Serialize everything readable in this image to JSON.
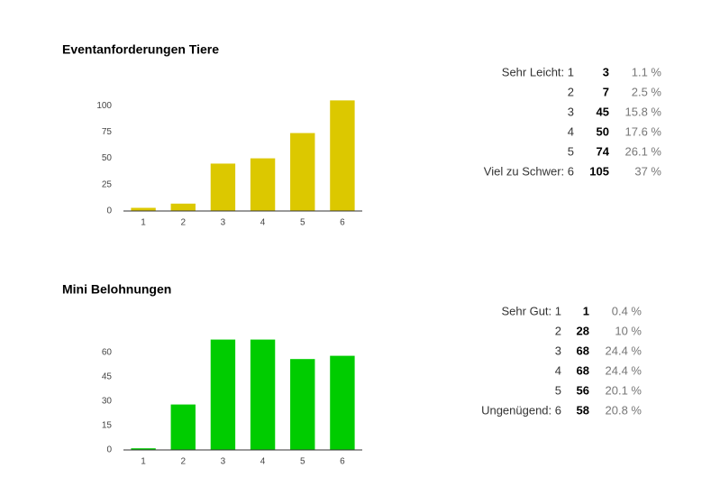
{
  "chart_data": [
    {
      "type": "bar",
      "title": "Eventanforderungen Tiere",
      "categories": [
        "1",
        "2",
        "3",
        "4",
        "5",
        "6"
      ],
      "values": [
        3,
        7,
        45,
        50,
        74,
        105
      ],
      "color": "#dcc800",
      "ylim": [
        0,
        125
      ],
      "yticks": [
        0,
        25,
        50,
        75,
        100
      ],
      "grid": false,
      "row_labels": [
        "Sehr Leicht: 1",
        "2",
        "3",
        "4",
        "5",
        "Viel zu Schwer: 6"
      ],
      "percent_labels": [
        "1.1 %",
        "2.5 %",
        "15.8 %",
        "17.6 %",
        "26.1 %",
        "37 %"
      ]
    },
    {
      "type": "bar",
      "title": "Mini Belohnungen",
      "categories": [
        "1",
        "2",
        "3",
        "4",
        "5",
        "6"
      ],
      "values": [
        1,
        28,
        68,
        68,
        56,
        58
      ],
      "color": "#00cc00",
      "ylim": [
        0,
        75
      ],
      "yticks": [
        0,
        15,
        30,
        45,
        60
      ],
      "grid": false,
      "row_labels": [
        "Sehr Gut: 1",
        "2",
        "3",
        "4",
        "5",
        "Ungenügend: 6"
      ],
      "percent_labels": [
        "0.4 %",
        "10 %",
        "24.4 %",
        "24.4 %",
        "20.1 %",
        "20.8 %"
      ]
    }
  ]
}
